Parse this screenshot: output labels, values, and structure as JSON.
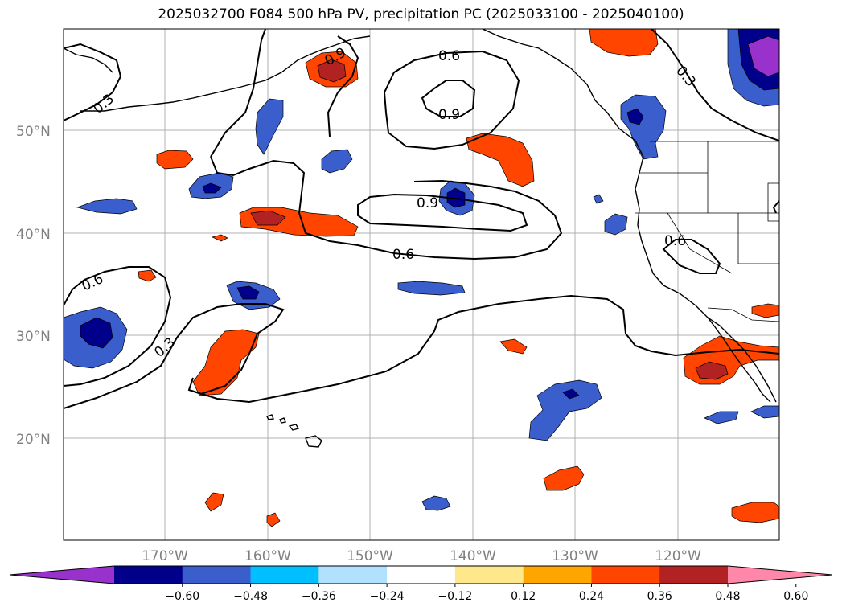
{
  "title": "2025032700 F084 500 hPa PV, precipitation PC (2025033100 - 2025040100)",
  "map": {
    "lon_labels": [
      "170°W",
      "160°W",
      "150°W",
      "140°W",
      "130°W",
      "120°W"
    ],
    "lat_labels": [
      "50°N",
      "40°N",
      "30°N",
      "20°N"
    ],
    "contour_labels": [
      "0.6",
      "0.9",
      "0.3",
      "0.9",
      "0.6",
      "0.9",
      "0.6",
      "0.6",
      "0.3",
      "0.3",
      "0.6"
    ]
  },
  "colorbar": {
    "ticks": [
      "−0.60",
      "−0.48",
      "−0.36",
      "−0.24",
      "−0.12",
      "0.12",
      "0.24",
      "0.36",
      "0.48",
      "0.60"
    ],
    "colors": [
      "#9932cc",
      "#00008b",
      "#3a5fcd",
      "#00bfff",
      "#b0e2ff",
      "#ffffff",
      "#fee88b",
      "#ffa500",
      "#ff4500",
      "#b22222",
      "#ff88aa"
    ]
  },
  "colors": {
    "neg_strong": "#00008b",
    "neg_mid": "#3a5fcd",
    "neg_light": "#00bfff",
    "neg_pale": "#b0e2ff",
    "pos_pale": "#fee88b",
    "pos_light": "#ffa500",
    "pos_mid": "#ff4500",
    "pos_strong": "#b22222",
    "purple": "#9932cc"
  }
}
